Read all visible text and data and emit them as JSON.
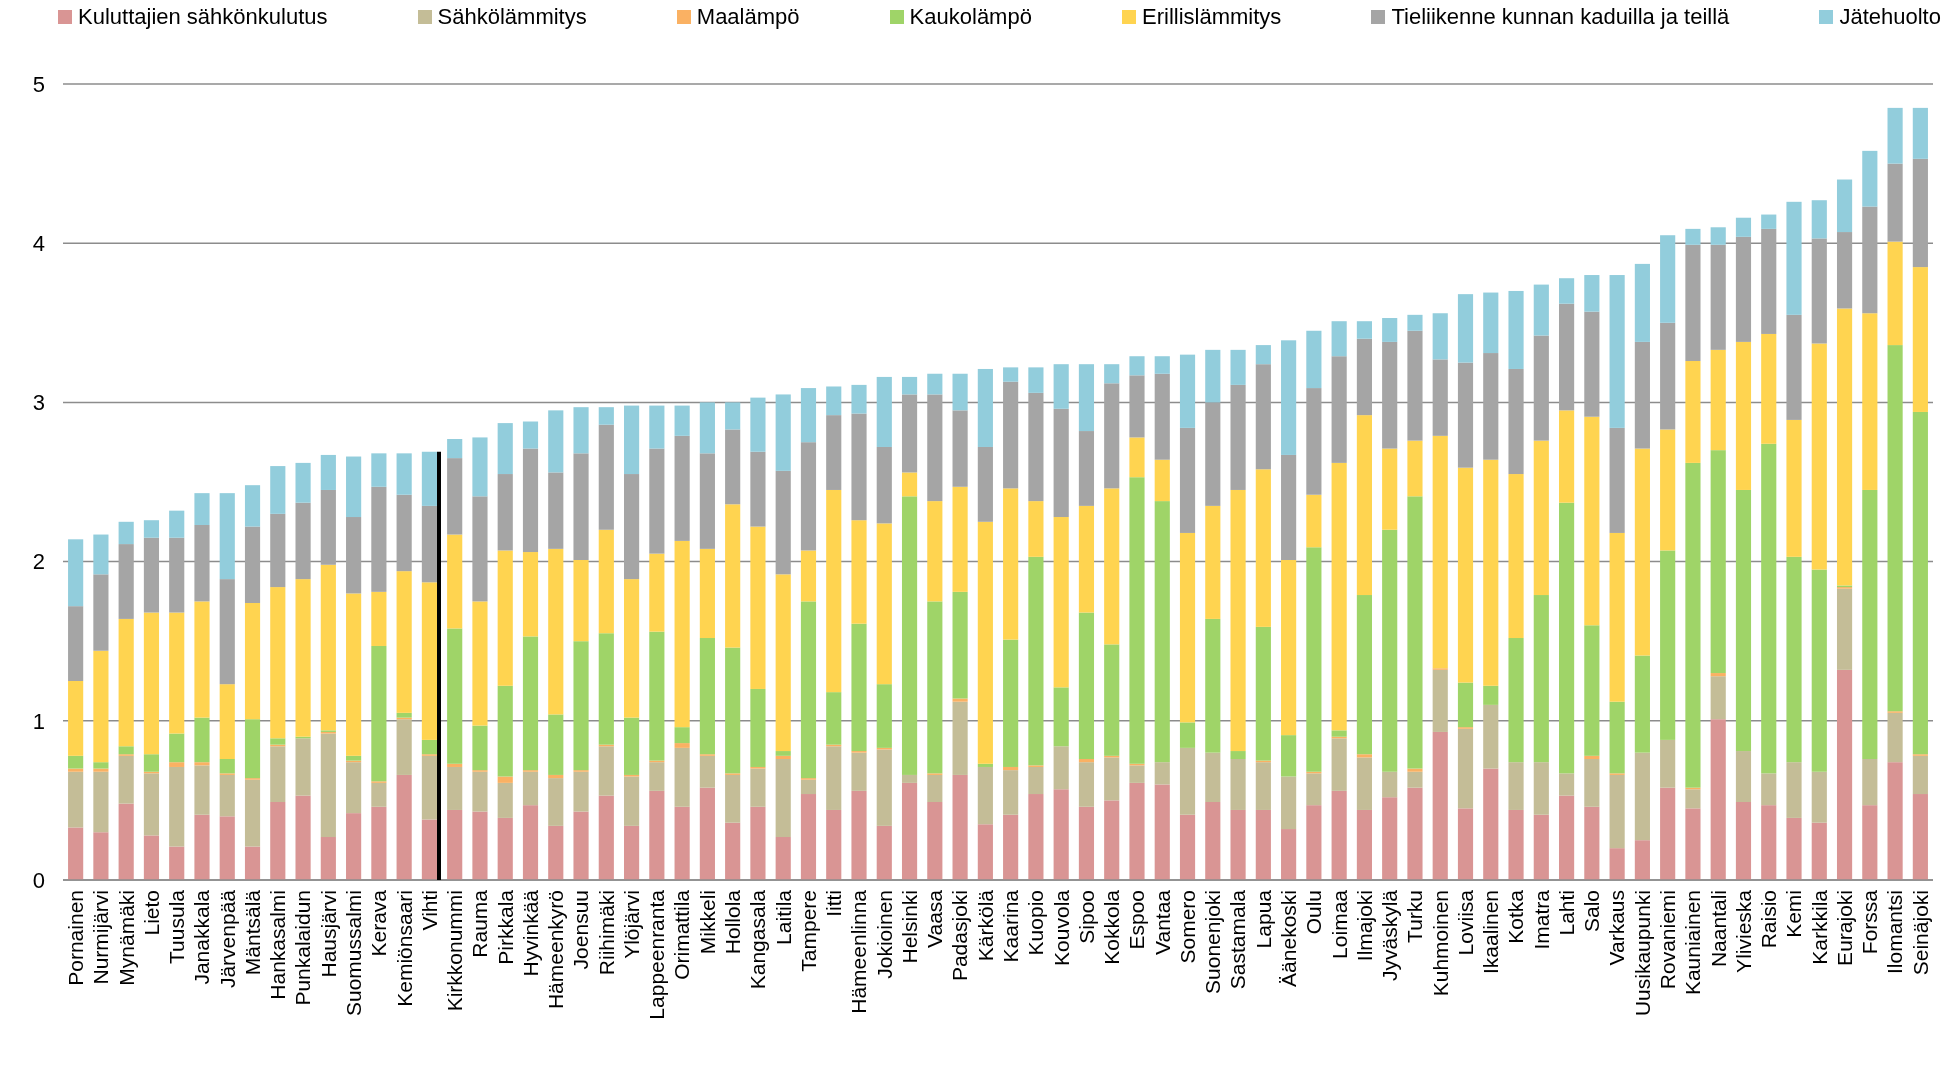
{
  "chart_data": {
    "type": "bar",
    "stacked": true,
    "legend": "top",
    "grid": "y",
    "ylim": [
      0,
      5
    ],
    "yticks": [
      0,
      1,
      2,
      3,
      4,
      5
    ],
    "categories": [
      "Pornainen",
      "Nurmijärvi",
      "Mynämäki",
      "Lieto",
      "Tuusula",
      "Janakkala",
      "Järvenpää",
      "Mäntsälä",
      "Hankasalmi",
      "Punkalaidun",
      "Hausjärvi",
      "Suomussalmi",
      "Kerava",
      "Kemiönsaari",
      "Vihti",
      "Kirkkonummi",
      "Rauma",
      "Pirkkala",
      "Hyvinkää",
      "Hämeenkyrö",
      "Joensuu",
      "Riihimäki",
      "Ylöjärvi",
      "Lappeenranta",
      "Orimattila",
      "Mikkeli",
      "Hollola",
      "Kangasala",
      "Laitila",
      "Tampere",
      "Iitti",
      "Hämeenlinna",
      "Jokioinen",
      "Helsinki",
      "Vaasa",
      "Padasjoki",
      "Kärkölä",
      "Kaarina",
      "Kuopio",
      "Kouvola",
      "Sipoo",
      "Kokkola",
      "Espoo",
      "Vantaa",
      "Somero",
      "Suonenjoki",
      "Sastamala",
      "Lapua",
      "Äänekoski",
      "Oulu",
      "Loimaa",
      "Ilmajoki",
      "Jyväskylä",
      "Turku",
      "Kuhmoinen",
      "Loviisa",
      "Ikaalinen",
      "Kotka",
      "Imatra",
      "Lahti",
      "Salo",
      "Varkaus",
      "Uusikaupunki",
      "Rovaniemi",
      "Kauniainen",
      "Naantali",
      "Ylivieska",
      "Raisio",
      "Kemi",
      "Karkkila",
      "Eurajoki",
      "Forssa",
      "Ilomantsi",
      "Seinäjoki"
    ],
    "series": [
      {
        "name": "Kuluttajien sähkönkulutus",
        "color": "#d99594",
        "values": [
          0.33,
          0.3,
          0.48,
          0.28,
          0.21,
          0.41,
          0.4,
          0.21,
          0.49,
          0.53,
          0.27,
          0.42,
          0.46,
          0.66,
          0.38,
          0.44,
          0.43,
          0.39,
          0.47,
          0.34,
          0.43,
          0.53,
          0.34,
          0.56,
          0.46,
          0.58,
          0.36,
          0.46,
          0.27,
          0.54,
          0.44,
          0.56,
          0.34,
          0.61,
          0.49,
          0.66,
          0.35,
          0.41,
          0.54,
          0.57,
          0.46,
          0.5,
          0.61,
          0.6,
          0.41,
          0.49,
          0.44,
          0.44,
          0.32,
          0.47,
          0.56,
          0.44,
          0.52,
          0.58,
          0.93,
          0.45,
          0.7,
          0.44,
          0.41,
          0.53,
          0.46,
          0.2,
          0.25,
          0.58,
          0.45,
          1.01,
          0.49,
          0.47,
          0.39,
          0.36,
          1.32,
          0.47,
          0.74,
          0.54
        ]
      },
      {
        "name": "Sähkölämmitys",
        "color": "#c4bd97",
        "values": [
          0.35,
          0.38,
          0.3,
          0.39,
          0.5,
          0.31,
          0.26,
          0.42,
          0.35,
          0.36,
          0.65,
          0.32,
          0.15,
          0.35,
          0.4,
          0.27,
          0.25,
          0.22,
          0.21,
          0.3,
          0.25,
          0.31,
          0.31,
          0.18,
          0.37,
          0.2,
          0.3,
          0.24,
          0.49,
          0.09,
          0.4,
          0.24,
          0.48,
          0.05,
          0.17,
          0.46,
          0.36,
          0.28,
          0.17,
          0.27,
          0.28,
          0.27,
          0.11,
          0.14,
          0.42,
          0.31,
          0.32,
          0.3,
          0.33,
          0.2,
          0.33,
          0.33,
          0.16,
          0.1,
          0.39,
          0.5,
          0.4,
          0.3,
          0.33,
          0.14,
          0.3,
          0.46,
          0.55,
          0.3,
          0.12,
          0.27,
          0.32,
          0.2,
          0.35,
          0.32,
          0.51,
          0.29,
          0.31,
          0.24
        ]
      },
      {
        "name": "Maalämpö",
        "color": "#fab163",
        "values": [
          0.02,
          0.02,
          0.01,
          0.01,
          0.03,
          0.02,
          0.01,
          0.01,
          0.01,
          0,
          0.01,
          0.01,
          0.01,
          0.01,
          0.01,
          0.02,
          0.01,
          0.04,
          0.01,
          0.02,
          0.01,
          0.01,
          0.01,
          0.01,
          0.03,
          0.01,
          0.01,
          0.01,
          0.02,
          0.01,
          0.01,
          0.01,
          0.01,
          0,
          0.01,
          0.02,
          0,
          0.02,
          0.01,
          0,
          0.02,
          0.01,
          0.01,
          0,
          0,
          0,
          0,
          0.01,
          0,
          0.01,
          0.01,
          0.02,
          0,
          0.02,
          0.01,
          0.01,
          0,
          0,
          0,
          0,
          0.02,
          0.01,
          0,
          0,
          0.01,
          0.02,
          0,
          0,
          0,
          0,
          0.01,
          0,
          0.01,
          0.01
        ]
      },
      {
        "name": "Kaukolämpö",
        "color": "#9fd468",
        "values": [
          0.08,
          0.04,
          0.05,
          0.11,
          0.18,
          0.28,
          0.09,
          0.37,
          0.04,
          0.01,
          0.01,
          0.03,
          0.85,
          0.03,
          0.09,
          0.85,
          0.28,
          0.57,
          0.84,
          0.38,
          0.81,
          0.7,
          0.36,
          0.81,
          0.1,
          0.73,
          0.79,
          0.49,
          0.03,
          1.11,
          0.33,
          0.8,
          0.4,
          1.75,
          1.08,
          0.67,
          0.02,
          0.8,
          1.31,
          0.37,
          0.92,
          0.7,
          1.8,
          1.64,
          0.16,
          0.84,
          0.05,
          0.84,
          0.26,
          1.41,
          0.04,
          1.0,
          1.52,
          1.71,
          0,
          0.28,
          0.12,
          0.78,
          1.05,
          1.7,
          0.82,
          0.45,
          0.61,
          1.19,
          2.04,
          1.4,
          1.64,
          2.07,
          1.29,
          1.27,
          0.01,
          1.69,
          2.3,
          2.15
        ]
      },
      {
        "name": "Erillislämmitys",
        "color": "#ffd450",
        "values": [
          0.47,
          0.7,
          0.8,
          0.89,
          0.76,
          0.73,
          0.47,
          0.73,
          0.95,
          0.99,
          1.04,
          1.02,
          0.34,
          0.89,
          0.99,
          0.59,
          0.78,
          0.85,
          0.53,
          1.04,
          0.51,
          0.65,
          0.87,
          0.49,
          1.17,
          0.56,
          0.9,
          1.02,
          1.11,
          0.32,
          1.27,
          0.65,
          1.01,
          0.15,
          0.63,
          0.66,
          1.52,
          0.95,
          0.35,
          1.07,
          0.67,
          0.98,
          0.25,
          0.26,
          1.19,
          0.71,
          1.64,
          0.99,
          1.1,
          0.33,
          1.68,
          1.13,
          0.51,
          0.35,
          1.46,
          1.35,
          1.42,
          1.03,
          0.97,
          0.58,
          1.31,
          1.06,
          1.3,
          0.76,
          0.64,
          0.63,
          0.93,
          0.69,
          0.86,
          1.42,
          1.74,
          1.11,
          0.65,
          0.91
        ]
      },
      {
        "name": "Tieliikenne kunnan kaduilla ja teillä",
        "color": "#a5a5a5",
        "values": [
          0.47,
          0.48,
          0.47,
          0.47,
          0.47,
          0.48,
          0.66,
          0.48,
          0.46,
          0.48,
          0.47,
          0.48,
          0.66,
          0.48,
          0.48,
          0.48,
          0.66,
          0.48,
          0.65,
          0.48,
          0.67,
          0.66,
          0.66,
          0.66,
          0.66,
          0.6,
          0.47,
          0.47,
          0.65,
          0.68,
          0.47,
          0.67,
          0.48,
          0.49,
          0.67,
          0.48,
          0.47,
          0.67,
          0.68,
          0.68,
          0.47,
          0.66,
          0.39,
          0.54,
          0.66,
          0.65,
          0.66,
          0.66,
          0.66,
          0.67,
          0.67,
          0.48,
          0.67,
          0.69,
          0.48,
          0.66,
          0.67,
          0.66,
          0.66,
          0.67,
          0.66,
          0.66,
          0.67,
          0.67,
          0.73,
          0.66,
          0.66,
          0.66,
          0.66,
          0.66,
          0.48,
          0.67,
          0.49,
          0.68
        ]
      },
      {
        "name": "Jätehuolto",
        "color": "#92cddc",
        "values": [
          0.42,
          0.25,
          0.14,
          0.11,
          0.17,
          0.2,
          0.54,
          0.26,
          0.3,
          0.25,
          0.22,
          0.38,
          0.21,
          0.26,
          0.34,
          0.12,
          0.37,
          0.32,
          0.17,
          0.39,
          0.29,
          0.11,
          0.43,
          0.27,
          0.19,
          0.32,
          0.17,
          0.34,
          0.48,
          0.34,
          0.18,
          0.18,
          0.44,
          0.11,
          0.13,
          0.23,
          0.49,
          0.09,
          0.16,
          0.28,
          0.42,
          0.12,
          0.12,
          0.11,
          0.46,
          0.33,
          0.22,
          0.12,
          0.72,
          0.36,
          0.22,
          0.11,
          0.15,
          0.1,
          0.29,
          0.43,
          0.38,
          0.49,
          0.32,
          0.16,
          0.23,
          0.96,
          0.49,
          0.55,
          0.1,
          0.11,
          0.12,
          0.09,
          0.71,
          0.24,
          0.33,
          0.35,
          0.35,
          0.32
        ]
      }
    ],
    "ref_lines": [
      {
        "axis": "x",
        "value": "Vihti",
        "color": "#000000"
      }
    ]
  }
}
